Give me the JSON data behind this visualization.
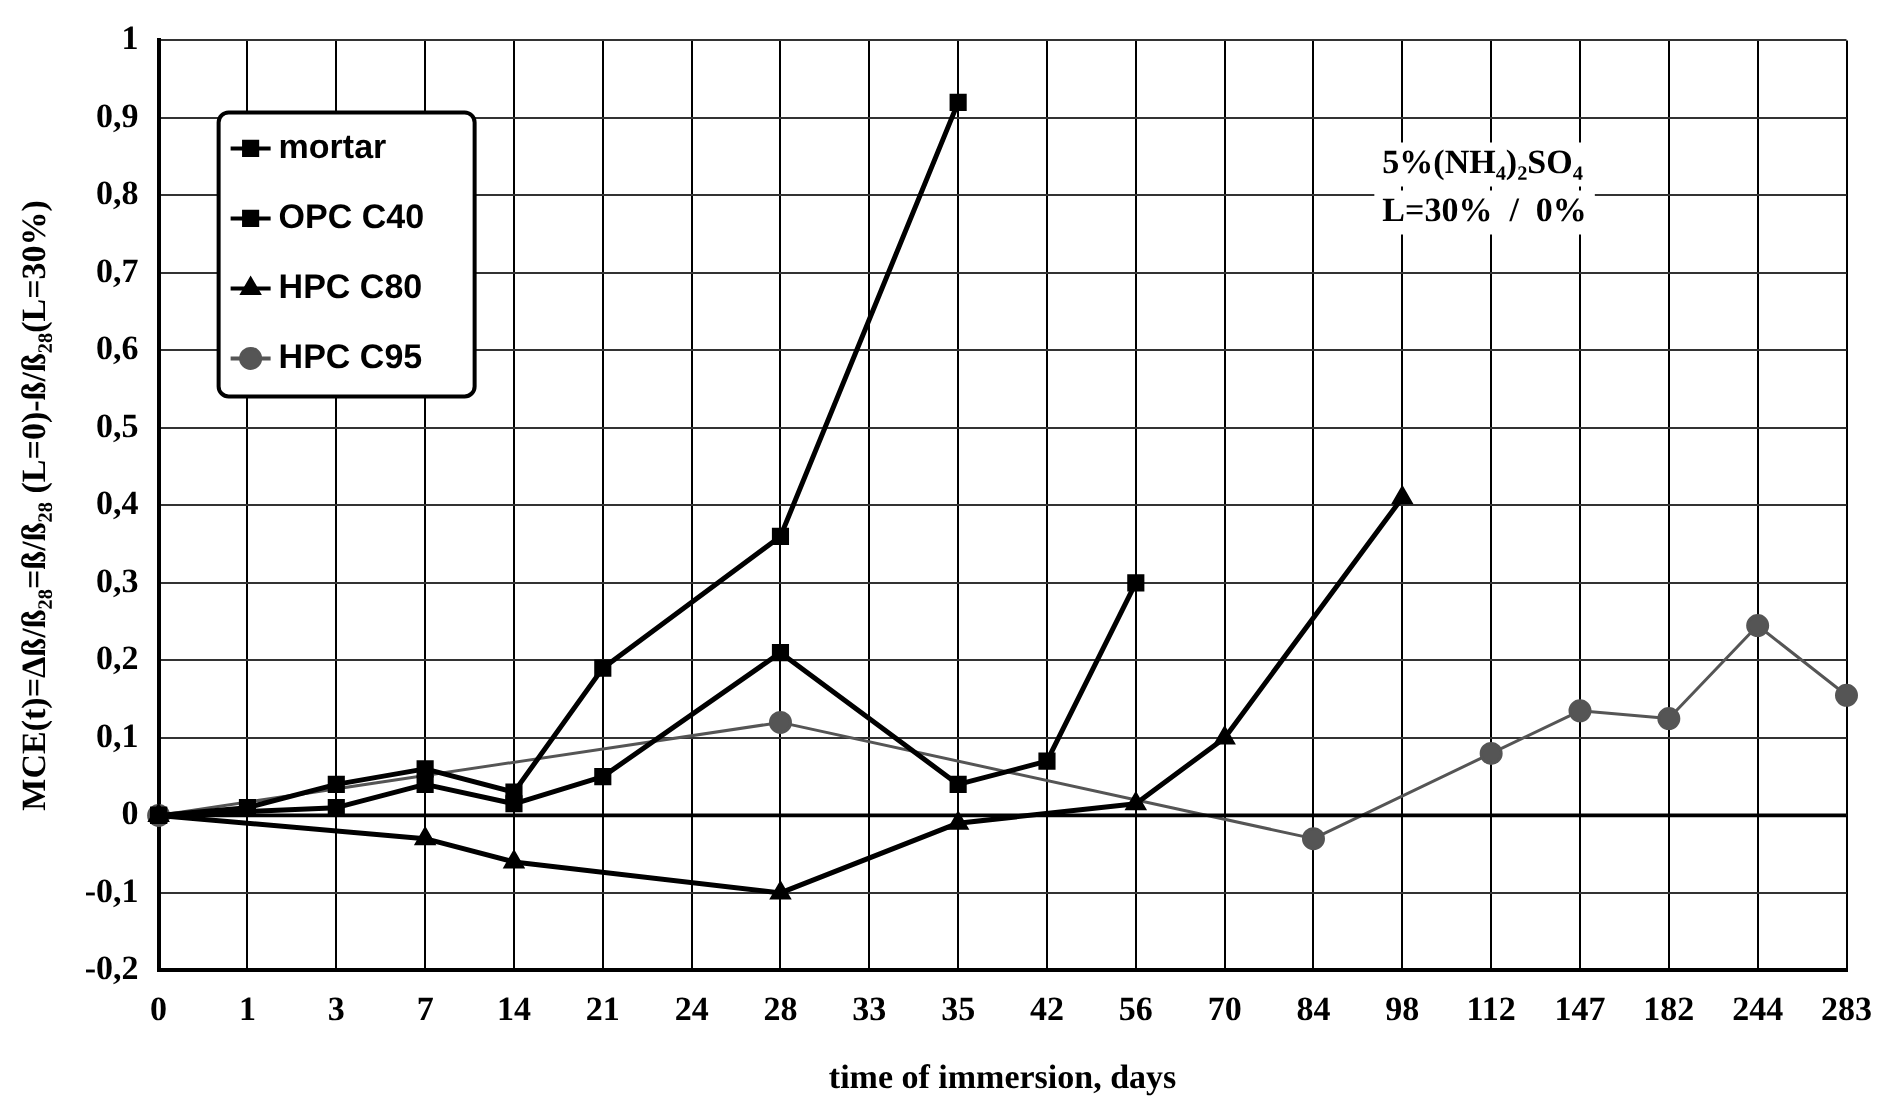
{
  "chart_data": {
    "type": "line",
    "xlabel": "time of immersion, days",
    "ylabel": "MCE(t)=Δß/ß₂₈=ß/ß₂₈ (L=0)-ß/ß₂₈(L=30%)",
    "categories": [
      "0",
      "1",
      "3",
      "7",
      "14",
      "21",
      "24",
      "28",
      "33",
      "35",
      "42",
      "56",
      "70",
      "84",
      "98",
      "112",
      "147",
      "182",
      "244",
      "283"
    ],
    "series": [
      {
        "name": "mortar",
        "color": "#000000",
        "marker": "square",
        "values": [
          0,
          0.01,
          0.04,
          0.06,
          0.03,
          0.19,
          null,
          0.36,
          null,
          0.92,
          null,
          null,
          null,
          null,
          null,
          null,
          null,
          null,
          null,
          null
        ]
      },
      {
        "name": "OPC C40",
        "color": "#000000",
        "marker": "square",
        "values": [
          0,
          null,
          0.01,
          0.04,
          0.015,
          0.05,
          null,
          0.21,
          null,
          0.04,
          0.07,
          0.3,
          null,
          null,
          null,
          null,
          null,
          null,
          null,
          null
        ]
      },
      {
        "name": "HPC C80",
        "color": "#000000",
        "marker": "triangle",
        "values": [
          0,
          null,
          null,
          -0.03,
          -0.06,
          null,
          null,
          -0.1,
          null,
          -0.01,
          null,
          0.015,
          0.1,
          null,
          0.41,
          null,
          null,
          null,
          null,
          null
        ]
      },
      {
        "name": "HPC C95",
        "color": "#555555",
        "marker": "circle",
        "values": [
          0,
          null,
          null,
          null,
          null,
          null,
          null,
          0.12,
          null,
          null,
          null,
          null,
          null,
          -0.03,
          null,
          0.08,
          0.135,
          0.125,
          0.245,
          0.155
        ]
      }
    ],
    "ylim": [
      -0.2,
      1
    ],
    "yticks": [
      {
        "value": -0.2,
        "label": "-0,2"
      },
      {
        "value": -0.1,
        "label": "-0,1"
      },
      0,
      {
        "value": 0.1,
        "label": "0,1"
      },
      {
        "value": 0.2,
        "label": "0,2"
      },
      {
        "value": 0.3,
        "label": "0,3"
      },
      {
        "value": 0.4,
        "label": "0,4"
      },
      {
        "value": 0.5,
        "label": "0,5"
      },
      {
        "value": 0.6,
        "label": "0,6"
      },
      {
        "value": 0.7,
        "label": "0,7"
      },
      {
        "value": 0.8,
        "label": "0,8"
      },
      {
        "value": 0.9,
        "label": "0,9"
      },
      1
    ],
    "grid": true,
    "legend": "top left",
    "line_style": "solid",
    "annotations": [
      "5%(NH₄)₂SO₄",
      "L=30%  /  0%"
    ]
  }
}
